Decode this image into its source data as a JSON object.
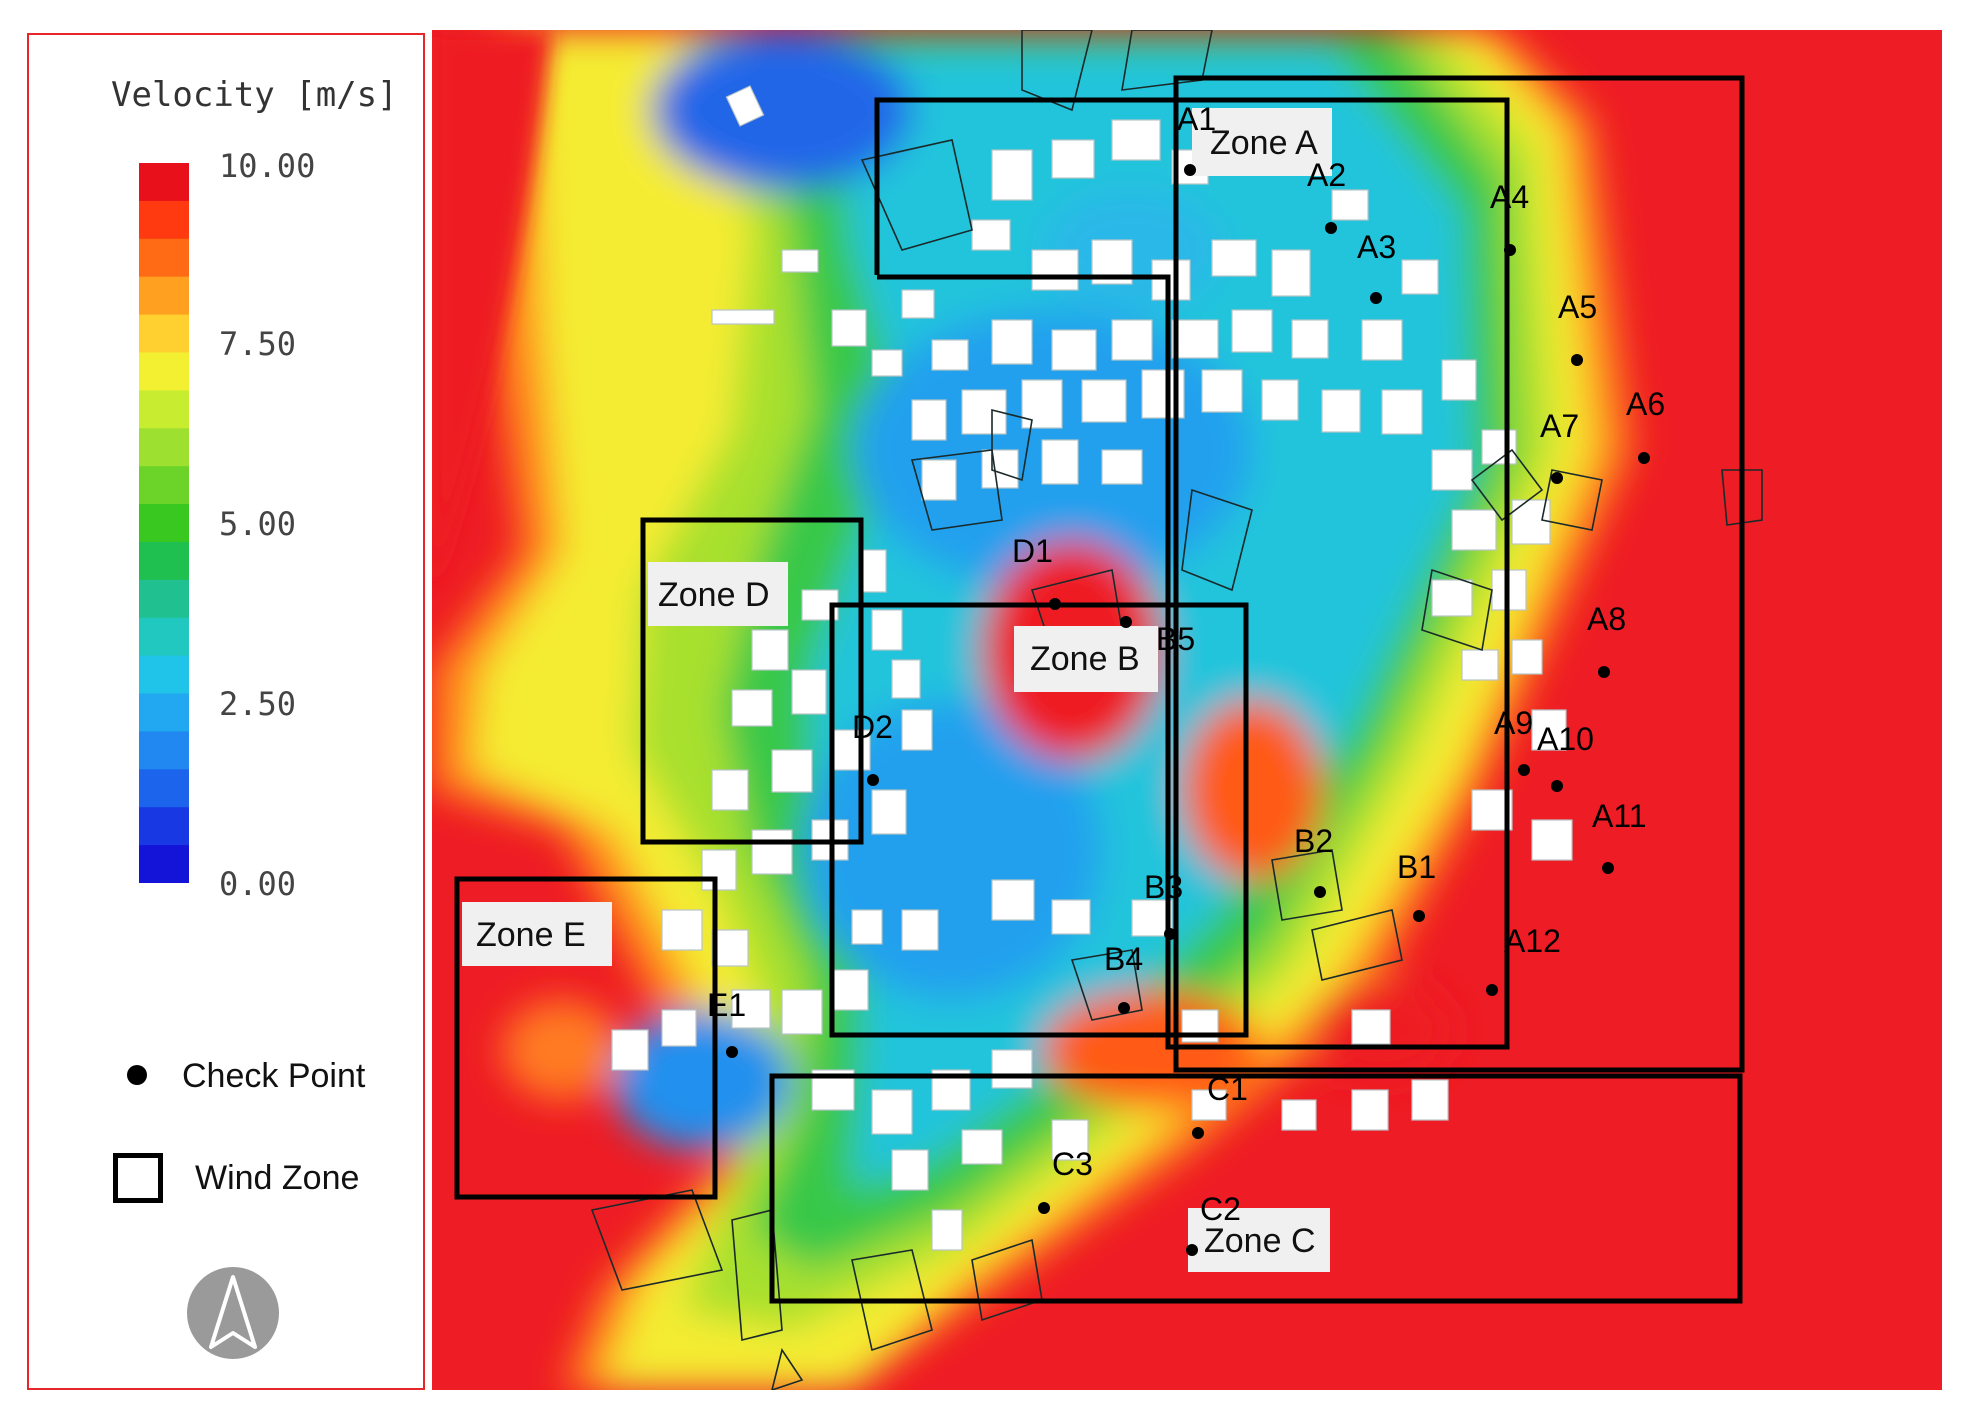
{
  "legend": {
    "title": "Velocity [m/s]",
    "ticks": [
      "10.00",
      "7.50",
      "5.00",
      "2.50",
      "0.00"
    ],
    "colors": [
      "#e8101a",
      "#ff3a10",
      "#ff6a14",
      "#ffa020",
      "#ffd030",
      "#f2f030",
      "#c8ec30",
      "#9ee030",
      "#6cd428",
      "#38c820",
      "#20c050",
      "#20c090",
      "#20c8c0",
      "#20c4e8",
      "#22a8f0",
      "#2088f0",
      "#1c64ec",
      "#1838e4",
      "#1414d8"
    ],
    "check_point_label": "Check Point",
    "wind_zone_label": "Wind Zone",
    "north_icon": "north-arrow-icon"
  },
  "map": {
    "zones": [
      {
        "id": "zone-a",
        "label": "Zone A"
      },
      {
        "id": "zone-b",
        "label": "Zone B"
      },
      {
        "id": "zone-c",
        "label": "Zone C"
      },
      {
        "id": "zone-d",
        "label": "Zone D"
      },
      {
        "id": "zone-e",
        "label": "Zone E"
      }
    ],
    "points": [
      "A1",
      "A2",
      "A3",
      "A4",
      "A5",
      "A6",
      "A7",
      "A8",
      "A9",
      "A10",
      "A11",
      "A12",
      "B1",
      "B2",
      "B3",
      "B4",
      "B5",
      "C1",
      "C2",
      "C3",
      "D1",
      "D2",
      "E1"
    ]
  }
}
